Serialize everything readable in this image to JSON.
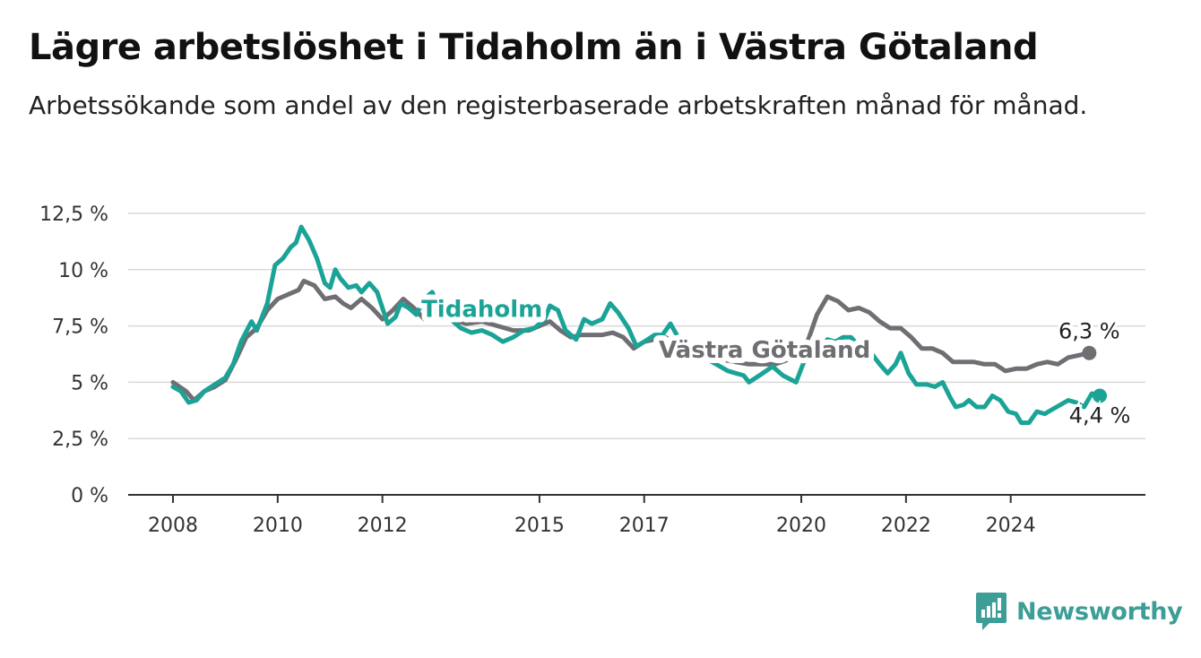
{
  "title": "Lägre arbetslöshet i Tidaholm än i Västra Götaland",
  "subtitle": "Arbetssökande som andel av den registerbaserade arbetskraften månad för månad.",
  "brand": {
    "name": "Newsworthy"
  },
  "chart_data": {
    "type": "line",
    "ylim": [
      0,
      12.5
    ],
    "xlim": [
      2008,
      2025.7
    ],
    "y_ticks": [
      {
        "value": 0,
        "label": "0 %"
      },
      {
        "value": 2.5,
        "label": "2,5 %"
      },
      {
        "value": 5,
        "label": "5 %"
      },
      {
        "value": 7.5,
        "label": "7,5 %"
      },
      {
        "value": 10,
        "label": "10 %"
      },
      {
        "value": 12.5,
        "label": "12,5 %"
      }
    ],
    "x_ticks": [
      {
        "value": 2008,
        "label": "2008"
      },
      {
        "value": 2010,
        "label": "2010"
      },
      {
        "value": 2012,
        "label": "2012"
      },
      {
        "value": 2015,
        "label": "2015"
      },
      {
        "value": 2017,
        "label": "2017"
      },
      {
        "value": 2020,
        "label": "2020"
      },
      {
        "value": 2022,
        "label": "2022"
      },
      {
        "value": 2024,
        "label": "2024"
      }
    ],
    "grid": true,
    "series": [
      {
        "name": "Västra Götaland",
        "color": "#6e6e73",
        "end_label": "6,3 %",
        "points": [
          [
            2008.0,
            5.0
          ],
          [
            2008.25,
            4.6
          ],
          [
            2008.4,
            4.2
          ],
          [
            2008.6,
            4.6
          ],
          [
            2008.8,
            4.8
          ],
          [
            2009.0,
            5.1
          ],
          [
            2009.2,
            6.0
          ],
          [
            2009.4,
            7.0
          ],
          [
            2009.6,
            7.4
          ],
          [
            2009.8,
            8.2
          ],
          [
            2010.0,
            8.7
          ],
          [
            2010.2,
            8.9
          ],
          [
            2010.4,
            9.1
          ],
          [
            2010.5,
            9.5
          ],
          [
            2010.7,
            9.3
          ],
          [
            2010.9,
            8.7
          ],
          [
            2011.1,
            8.8
          ],
          [
            2011.25,
            8.5
          ],
          [
            2011.4,
            8.3
          ],
          [
            2011.6,
            8.7
          ],
          [
            2011.8,
            8.3
          ],
          [
            2012.0,
            7.8
          ],
          [
            2012.2,
            8.2
          ],
          [
            2012.4,
            8.7
          ],
          [
            2012.6,
            8.3
          ],
          [
            2012.8,
            7.8
          ],
          [
            2013.0,
            7.9
          ],
          [
            2013.3,
            7.8
          ],
          [
            2013.6,
            7.6
          ],
          [
            2013.9,
            7.7
          ],
          [
            2014.2,
            7.5
          ],
          [
            2014.5,
            7.3
          ],
          [
            2014.8,
            7.3
          ],
          [
            2015.0,
            7.5
          ],
          [
            2015.2,
            7.7
          ],
          [
            2015.4,
            7.3
          ],
          [
            2015.6,
            7.0
          ],
          [
            2015.8,
            7.1
          ],
          [
            2016.0,
            7.1
          ],
          [
            2016.2,
            7.1
          ],
          [
            2016.4,
            7.2
          ],
          [
            2016.6,
            7.0
          ],
          [
            2016.8,
            6.5
          ],
          [
            2017.0,
            6.8
          ],
          [
            2017.2,
            6.9
          ],
          [
            2017.4,
            7.0
          ],
          [
            2017.6,
            6.8
          ],
          [
            2018.0,
            6.3
          ],
          [
            2018.5,
            6.0
          ],
          [
            2019.0,
            5.8
          ],
          [
            2019.5,
            5.8
          ],
          [
            2020.0,
            6.2
          ],
          [
            2020.15,
            7.0
          ],
          [
            2020.3,
            8.0
          ],
          [
            2020.5,
            8.8
          ],
          [
            2020.7,
            8.6
          ],
          [
            2020.9,
            8.2
          ],
          [
            2021.1,
            8.3
          ],
          [
            2021.3,
            8.1
          ],
          [
            2021.5,
            7.7
          ],
          [
            2021.7,
            7.4
          ],
          [
            2021.9,
            7.4
          ],
          [
            2022.1,
            7.0
          ],
          [
            2022.3,
            6.5
          ],
          [
            2022.5,
            6.5
          ],
          [
            2022.7,
            6.3
          ],
          [
            2022.9,
            5.9
          ],
          [
            2023.1,
            5.9
          ],
          [
            2023.3,
            5.9
          ],
          [
            2023.5,
            5.8
          ],
          [
            2023.7,
            5.8
          ],
          [
            2023.9,
            5.5
          ],
          [
            2024.1,
            5.6
          ],
          [
            2024.3,
            5.6
          ],
          [
            2024.5,
            5.8
          ],
          [
            2024.7,
            5.9
          ],
          [
            2024.9,
            5.8
          ],
          [
            2025.1,
            6.1
          ],
          [
            2025.3,
            6.2
          ],
          [
            2025.5,
            6.3
          ]
        ]
      },
      {
        "name": "Tidaholm",
        "color": "#1aa396",
        "end_label": "4,4 %",
        "points": [
          [
            2008.0,
            4.8
          ],
          [
            2008.15,
            4.6
          ],
          [
            2008.3,
            4.1
          ],
          [
            2008.45,
            4.2
          ],
          [
            2008.6,
            4.6
          ],
          [
            2008.8,
            4.9
          ],
          [
            2009.0,
            5.2
          ],
          [
            2009.15,
            5.8
          ],
          [
            2009.3,
            6.8
          ],
          [
            2009.5,
            7.7
          ],
          [
            2009.6,
            7.3
          ],
          [
            2009.8,
            8.5
          ],
          [
            2009.95,
            10.2
          ],
          [
            2010.1,
            10.5
          ],
          [
            2010.25,
            11.0
          ],
          [
            2010.35,
            11.2
          ],
          [
            2010.45,
            11.9
          ],
          [
            2010.6,
            11.3
          ],
          [
            2010.75,
            10.5
          ],
          [
            2010.9,
            9.4
          ],
          [
            2011.0,
            9.2
          ],
          [
            2011.1,
            10.0
          ],
          [
            2011.2,
            9.6
          ],
          [
            2011.35,
            9.2
          ],
          [
            2011.5,
            9.3
          ],
          [
            2011.6,
            9.0
          ],
          [
            2011.75,
            9.4
          ],
          [
            2011.9,
            9.0
          ],
          [
            2012.0,
            8.3
          ],
          [
            2012.1,
            7.6
          ],
          [
            2012.25,
            7.9
          ],
          [
            2012.35,
            8.5
          ],
          [
            2012.5,
            8.3
          ],
          [
            2012.65,
            8.0
          ],
          [
            2012.8,
            8.7
          ],
          [
            2012.95,
            9.0
          ],
          [
            2013.05,
            8.5
          ],
          [
            2013.2,
            8.2
          ],
          [
            2013.35,
            7.7
          ],
          [
            2013.5,
            7.4
          ],
          [
            2013.7,
            7.2
          ],
          [
            2013.9,
            7.3
          ],
          [
            2014.1,
            7.1
          ],
          [
            2014.3,
            6.8
          ],
          [
            2014.5,
            7.0
          ],
          [
            2014.7,
            7.3
          ],
          [
            2014.9,
            7.4
          ],
          [
            2015.1,
            7.8
          ],
          [
            2015.2,
            8.4
          ],
          [
            2015.35,
            8.2
          ],
          [
            2015.5,
            7.3
          ],
          [
            2015.7,
            6.9
          ],
          [
            2015.85,
            7.8
          ],
          [
            2016.0,
            7.6
          ],
          [
            2016.2,
            7.8
          ],
          [
            2016.35,
            8.5
          ],
          [
            2016.5,
            8.1
          ],
          [
            2016.7,
            7.4
          ],
          [
            2016.85,
            6.6
          ],
          [
            2017.0,
            6.8
          ],
          [
            2017.2,
            7.1
          ],
          [
            2017.35,
            7.1
          ],
          [
            2017.5,
            7.6
          ],
          [
            2017.65,
            7.0
          ],
          [
            2017.8,
            6.8
          ],
          [
            2018.0,
            6.3
          ],
          [
            2018.3,
            5.9
          ],
          [
            2018.6,
            5.5
          ],
          [
            2018.9,
            5.3
          ],
          [
            2019.0,
            5.0
          ],
          [
            2019.2,
            5.3
          ],
          [
            2019.45,
            5.7
          ],
          [
            2019.65,
            5.3
          ],
          [
            2019.9,
            5.0
          ],
          [
            2020.05,
            5.9
          ],
          [
            2020.3,
            6.3
          ],
          [
            2020.5,
            6.9
          ],
          [
            2020.65,
            6.8
          ],
          [
            2020.8,
            7.0
          ],
          [
            2020.95,
            7.0
          ],
          [
            2021.1,
            6.6
          ],
          [
            2021.3,
            6.4
          ],
          [
            2021.5,
            5.8
          ],
          [
            2021.65,
            5.4
          ],
          [
            2021.8,
            5.8
          ],
          [
            2021.9,
            6.3
          ],
          [
            2022.05,
            5.4
          ],
          [
            2022.2,
            4.9
          ],
          [
            2022.4,
            4.9
          ],
          [
            2022.55,
            4.8
          ],
          [
            2022.7,
            5.0
          ],
          [
            2022.85,
            4.3
          ],
          [
            2022.95,
            3.9
          ],
          [
            2023.1,
            4.0
          ],
          [
            2023.2,
            4.2
          ],
          [
            2023.35,
            3.9
          ],
          [
            2023.5,
            3.9
          ],
          [
            2023.65,
            4.4
          ],
          [
            2023.8,
            4.2
          ],
          [
            2023.95,
            3.7
          ],
          [
            2024.1,
            3.6
          ],
          [
            2024.2,
            3.2
          ],
          [
            2024.35,
            3.2
          ],
          [
            2024.5,
            3.7
          ],
          [
            2024.65,
            3.6
          ],
          [
            2024.8,
            3.8
          ],
          [
            2024.95,
            4.0
          ],
          [
            2025.1,
            4.2
          ],
          [
            2025.25,
            4.1
          ],
          [
            2025.4,
            3.9
          ],
          [
            2025.55,
            4.5
          ],
          [
            2025.7,
            4.4
          ]
        ]
      }
    ],
    "series_labels": [
      {
        "series": "Tidaholm",
        "text": "Tidaholm",
        "x": 2013.9,
        "y": 7.9
      },
      {
        "series": "Västra Götaland",
        "text": "Västra Götaland",
        "x": 2019.3,
        "y": 6.1
      }
    ]
  }
}
